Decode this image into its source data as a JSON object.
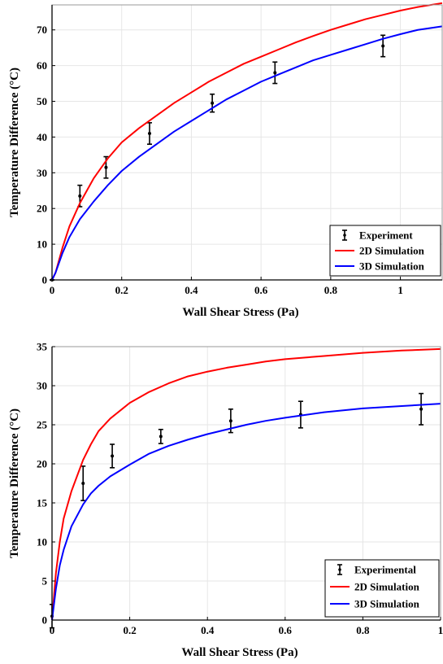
{
  "chart_data": [
    {
      "type": "line",
      "xlabel": "Wall Shear Stress (Pa)",
      "ylabel": "Temperature Difference (°C)",
      "xlim": [
        0,
        1.12
      ],
      "ylim": [
        0,
        77
      ],
      "xticks": [
        0,
        0.2,
        0.4,
        0.6,
        0.8,
        1
      ],
      "xtick_labels": [
        "0",
        "0.2",
        "0.4",
        "0.6",
        "0.8",
        "1"
      ],
      "yticks": [
        0,
        10,
        20,
        30,
        40,
        50,
        60,
        70
      ],
      "ytick_labels": [
        "0",
        "10",
        "20",
        "30",
        "40",
        "50",
        "60",
        "70"
      ],
      "grid": true,
      "legend_position": "bottom-right",
      "series": [
        {
          "name": "Experiment",
          "kind": "errorbar",
          "color": "#000000",
          "x": [
            0.0,
            0.08,
            0.155,
            0.28,
            0.46,
            0.64,
            0.95
          ],
          "y": [
            0.0,
            23.5,
            31.5,
            41.0,
            49.5,
            58.0,
            65.5
          ],
          "err": [
            0.0,
            3.0,
            3.0,
            3.0,
            2.5,
            3.0,
            3.0
          ]
        },
        {
          "name": "2D Simulation",
          "kind": "line",
          "color": "#ff0000",
          "x": [
            0,
            0.01,
            0.03,
            0.05,
            0.08,
            0.12,
            0.16,
            0.2,
            0.25,
            0.3,
            0.35,
            0.4,
            0.45,
            0.5,
            0.55,
            0.6,
            0.65,
            0.7,
            0.75,
            0.8,
            0.85,
            0.9,
            0.95,
            1.0,
            1.05,
            1.12
          ],
          "y": [
            0,
            2,
            9,
            15,
            21.5,
            28.5,
            34,
            38.5,
            42.5,
            46,
            49.5,
            52.5,
            55.5,
            58,
            60.5,
            62.5,
            64.5,
            66.5,
            68.3,
            70,
            71.5,
            73,
            74.2,
            75.4,
            76.4,
            77.5
          ]
        },
        {
          "name": "3D Simulation",
          "kind": "line",
          "color": "#0000ff",
          "x": [
            0,
            0.01,
            0.03,
            0.05,
            0.08,
            0.12,
            0.16,
            0.2,
            0.25,
            0.3,
            0.35,
            0.4,
            0.45,
            0.5,
            0.55,
            0.6,
            0.65,
            0.7,
            0.75,
            0.8,
            0.85,
            0.9,
            0.95,
            1.0,
            1.05,
            1.12
          ],
          "y": [
            0,
            2,
            7.5,
            12,
            17,
            22,
            26.5,
            30.5,
            34.5,
            38,
            41.5,
            44.5,
            47.5,
            50.5,
            53,
            55.5,
            57.5,
            59.5,
            61.5,
            63,
            64.5,
            66,
            67.5,
            68.8,
            70,
            71
          ]
        }
      ]
    },
    {
      "type": "line",
      "xlabel": "Wall Shear Stress (Pa)",
      "ylabel": "Temperature Difference (°C)",
      "xlim": [
        0,
        1
      ],
      "ylim": [
        0,
        35
      ],
      "xticks": [
        0,
        0.2,
        0.4,
        0.6,
        0.8,
        1
      ],
      "xtick_labels": [
        "0",
        "0.2",
        "0.4",
        "0.6",
        "0.8",
        "1"
      ],
      "yticks": [
        0,
        5,
        10,
        15,
        20,
        25,
        30,
        35
      ],
      "ytick_labels": [
        "0",
        "5",
        "10",
        "15",
        "20",
        "25",
        "30",
        "35"
      ],
      "grid": true,
      "legend_position": "bottom-right",
      "series": [
        {
          "name": "Experimental",
          "kind": "errorbar",
          "color": "#000000",
          "x": [
            0.0,
            0.08,
            0.155,
            0.28,
            0.46,
            0.64,
            0.95
          ],
          "y": [
            0.5,
            17.5,
            21.0,
            23.5,
            25.5,
            26.3,
            27.0
          ],
          "err": [
            1.5,
            2.2,
            1.5,
            0.9,
            1.5,
            1.7,
            2.0
          ]
        },
        {
          "name": "2D Simulation",
          "kind": "line",
          "color": "#ff0000",
          "x": [
            0,
            0.005,
            0.01,
            0.02,
            0.03,
            0.05,
            0.08,
            0.1,
            0.12,
            0.15,
            0.18,
            0.2,
            0.25,
            0.3,
            0.35,
            0.4,
            0.45,
            0.5,
            0.55,
            0.6,
            0.7,
            0.8,
            0.9,
            1.0
          ],
          "y": [
            0,
            3,
            6,
            10,
            13,
            16.5,
            20.5,
            22.5,
            24.2,
            25.8,
            27,
            27.8,
            29.2,
            30.3,
            31.2,
            31.8,
            32.3,
            32.7,
            33.1,
            33.4,
            33.8,
            34.2,
            34.5,
            34.7
          ]
        },
        {
          "name": "3D Simulation",
          "kind": "line",
          "color": "#0000ff",
          "x": [
            0,
            0.005,
            0.01,
            0.02,
            0.03,
            0.05,
            0.08,
            0.1,
            0.12,
            0.15,
            0.18,
            0.2,
            0.25,
            0.3,
            0.35,
            0.4,
            0.45,
            0.5,
            0.55,
            0.6,
            0.7,
            0.8,
            0.9,
            1.0
          ],
          "y": [
            0,
            2,
            4,
            7,
            9,
            12,
            14.8,
            16.2,
            17.2,
            18.4,
            19.3,
            19.9,
            21.3,
            22.3,
            23.1,
            23.8,
            24.4,
            25,
            25.5,
            25.9,
            26.6,
            27.1,
            27.4,
            27.7
          ]
        }
      ]
    }
  ]
}
